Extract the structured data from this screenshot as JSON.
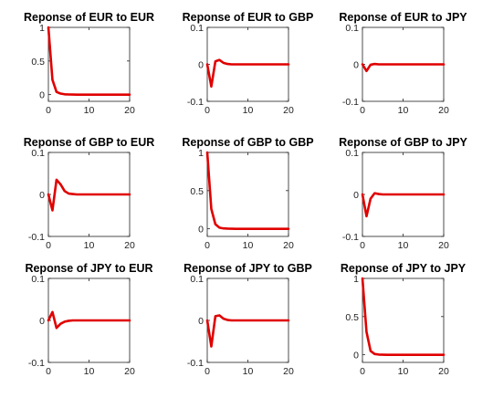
{
  "series_color": "#e00000",
  "chart_data": [
    {
      "type": "line",
      "title": "Reponse of EUR to EUR",
      "xlim": [
        0,
        20
      ],
      "ylim": [
        -0.1,
        1
      ],
      "xticks": [
        0,
        10,
        20
      ],
      "yticks": [
        0,
        0.5,
        1
      ],
      "x": [
        0,
        1,
        2,
        3,
        4,
        5,
        6,
        7,
        8,
        9,
        10,
        11,
        12,
        13,
        14,
        15,
        16,
        17,
        18,
        19,
        20
      ],
      "values": [
        1,
        0.22,
        0.04,
        0.015,
        0.005,
        0.002,
        0.001,
        0,
        0,
        0,
        0,
        0,
        0,
        0,
        0,
        0,
        0,
        0,
        0,
        0,
        0
      ]
    },
    {
      "type": "line",
      "title": "Reponse of EUR to GBP",
      "xlim": [
        0,
        20
      ],
      "ylim": [
        -0.1,
        0.1
      ],
      "xticks": [
        0,
        10,
        20
      ],
      "yticks": [
        -0.1,
        0,
        0.1
      ],
      "x": [
        0,
        1,
        2,
        3,
        4,
        5,
        6,
        7,
        8,
        9,
        10,
        11,
        12,
        13,
        14,
        15,
        16,
        17,
        18,
        19,
        20
      ],
      "values": [
        0,
        -0.06,
        0.008,
        0.012,
        0.004,
        0.001,
        0,
        0,
        0,
        0,
        0,
        0,
        0,
        0,
        0,
        0,
        0,
        0,
        0,
        0,
        0
      ]
    },
    {
      "type": "line",
      "title": "Reponse of EUR to JPY",
      "xlim": [
        0,
        20
      ],
      "ylim": [
        -0.1,
        0.1
      ],
      "xticks": [
        0,
        10,
        20
      ],
      "yticks": [
        -0.1,
        0,
        0.1
      ],
      "x": [
        0,
        1,
        2,
        3,
        4,
        5,
        6,
        7,
        8,
        9,
        10,
        11,
        12,
        13,
        14,
        15,
        16,
        17,
        18,
        19,
        20
      ],
      "values": [
        0,
        -0.018,
        -0.001,
        0.001,
        0,
        0,
        0,
        0,
        0,
        0,
        0,
        0,
        0,
        0,
        0,
        0,
        0,
        0,
        0,
        0,
        0
      ]
    },
    {
      "type": "line",
      "title": "Reponse of GBP to EUR",
      "xlim": [
        0,
        20
      ],
      "ylim": [
        -0.1,
        0.1
      ],
      "xticks": [
        0,
        10,
        20
      ],
      "yticks": [
        -0.1,
        0,
        0.1
      ],
      "x": [
        0,
        1,
        2,
        3,
        4,
        5,
        6,
        7,
        8,
        9,
        10,
        11,
        12,
        13,
        14,
        15,
        16,
        17,
        18,
        19,
        20
      ],
      "values": [
        0,
        -0.038,
        0.035,
        0.024,
        0.008,
        0.002,
        0.001,
        0,
        0,
        0,
        0,
        0,
        0,
        0,
        0,
        0,
        0,
        0,
        0,
        0,
        0
      ]
    },
    {
      "type": "line",
      "title": "Reponse of GBP to GBP",
      "xlim": [
        0,
        20
      ],
      "ylim": [
        -0.1,
        1
      ],
      "xticks": [
        0,
        10,
        20
      ],
      "yticks": [
        0,
        0.5,
        1
      ],
      "x": [
        0,
        1,
        2,
        3,
        4,
        5,
        6,
        7,
        8,
        9,
        10,
        11,
        12,
        13,
        14,
        15,
        16,
        17,
        18,
        19,
        20
      ],
      "values": [
        1,
        0.26,
        0.06,
        0.015,
        0.005,
        0.002,
        0.001,
        0,
        0,
        0,
        0,
        0,
        0,
        0,
        0,
        0,
        0,
        0,
        0,
        0,
        0
      ]
    },
    {
      "type": "line",
      "title": "Reponse of GBP to JPY",
      "xlim": [
        0,
        20
      ],
      "ylim": [
        -0.1,
        0.1
      ],
      "xticks": [
        0,
        10,
        20
      ],
      "yticks": [
        -0.1,
        0,
        0.1
      ],
      "x": [
        0,
        1,
        2,
        3,
        4,
        5,
        6,
        7,
        8,
        9,
        10,
        11,
        12,
        13,
        14,
        15,
        16,
        17,
        18,
        19,
        20
      ],
      "values": [
        0,
        -0.052,
        -0.01,
        0.003,
        0.001,
        0,
        0,
        0,
        0,
        0,
        0,
        0,
        0,
        0,
        0,
        0,
        0,
        0,
        0,
        0,
        0
      ]
    },
    {
      "type": "line",
      "title": "Reponse of JPY to EUR",
      "xlim": [
        0,
        20
      ],
      "ylim": [
        -0.1,
        0.1
      ],
      "xticks": [
        0,
        10,
        20
      ],
      "yticks": [
        -0.1,
        0,
        0.1
      ],
      "x": [
        0,
        1,
        2,
        3,
        4,
        5,
        6,
        7,
        8,
        9,
        10,
        11,
        12,
        13,
        14,
        15,
        16,
        17,
        18,
        19,
        20
      ],
      "values": [
        0,
        0.02,
        -0.018,
        -0.008,
        -0.003,
        -0.001,
        0,
        0,
        0,
        0,
        0,
        0,
        0,
        0,
        0,
        0,
        0,
        0,
        0,
        0,
        0
      ]
    },
    {
      "type": "line",
      "title": "Reponse of JPY to GBP",
      "xlim": [
        0,
        20
      ],
      "ylim": [
        -0.1,
        0.1
      ],
      "xticks": [
        0,
        10,
        20
      ],
      "yticks": [
        -0.1,
        0,
        0.1
      ],
      "x": [
        0,
        1,
        2,
        3,
        4,
        5,
        6,
        7,
        8,
        9,
        10,
        11,
        12,
        13,
        14,
        15,
        16,
        17,
        18,
        19,
        20
      ],
      "values": [
        0,
        -0.062,
        0.01,
        0.012,
        0.004,
        0.001,
        0,
        0,
        0,
        0,
        0,
        0,
        0,
        0,
        0,
        0,
        0,
        0,
        0,
        0,
        0
      ]
    },
    {
      "type": "line",
      "title": "Reponse of JPY to JPY",
      "xlim": [
        0,
        20
      ],
      "ylim": [
        -0.1,
        1
      ],
      "xticks": [
        0,
        10,
        20
      ],
      "yticks": [
        0,
        0.5,
        1
      ],
      "x": [
        0,
        1,
        2,
        3,
        4,
        5,
        6,
        7,
        8,
        9,
        10,
        11,
        12,
        13,
        14,
        15,
        16,
        17,
        18,
        19,
        20
      ],
      "values": [
        1,
        0.3,
        0.05,
        0.01,
        0.003,
        0.001,
        0,
        0,
        0,
        0,
        0,
        0,
        0,
        0,
        0,
        0,
        0,
        0,
        0,
        0,
        0
      ]
    }
  ]
}
